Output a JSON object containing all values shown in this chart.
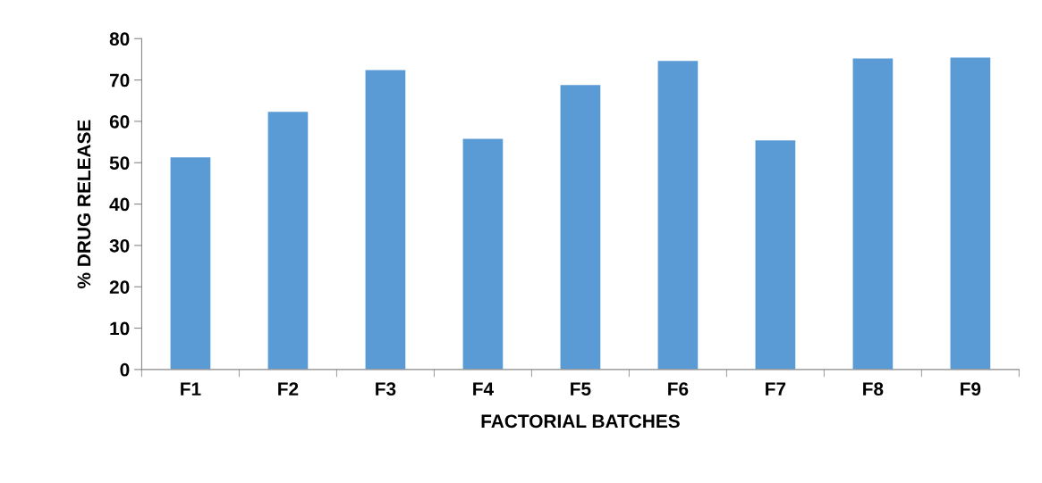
{
  "chart_data": {
    "type": "bar",
    "xlabel": "FACTORIAL BATCHES",
    "ylabel": "% DRUG RELEASE",
    "categories": [
      "F1",
      "F2",
      "F3",
      "F4",
      "F5",
      "F6",
      "F7",
      "F8",
      "F9"
    ],
    "values": [
      51.3,
      62.3,
      72.4,
      55.8,
      68.8,
      74.6,
      55.4,
      75.2,
      75.4
    ],
    "color": "#5b9bd5",
    "ylim": [
      0,
      80
    ],
    "yticks": [
      0,
      10,
      20,
      30,
      40,
      50,
      60,
      70,
      80
    ],
    "grid": false,
    "legend": false
  }
}
